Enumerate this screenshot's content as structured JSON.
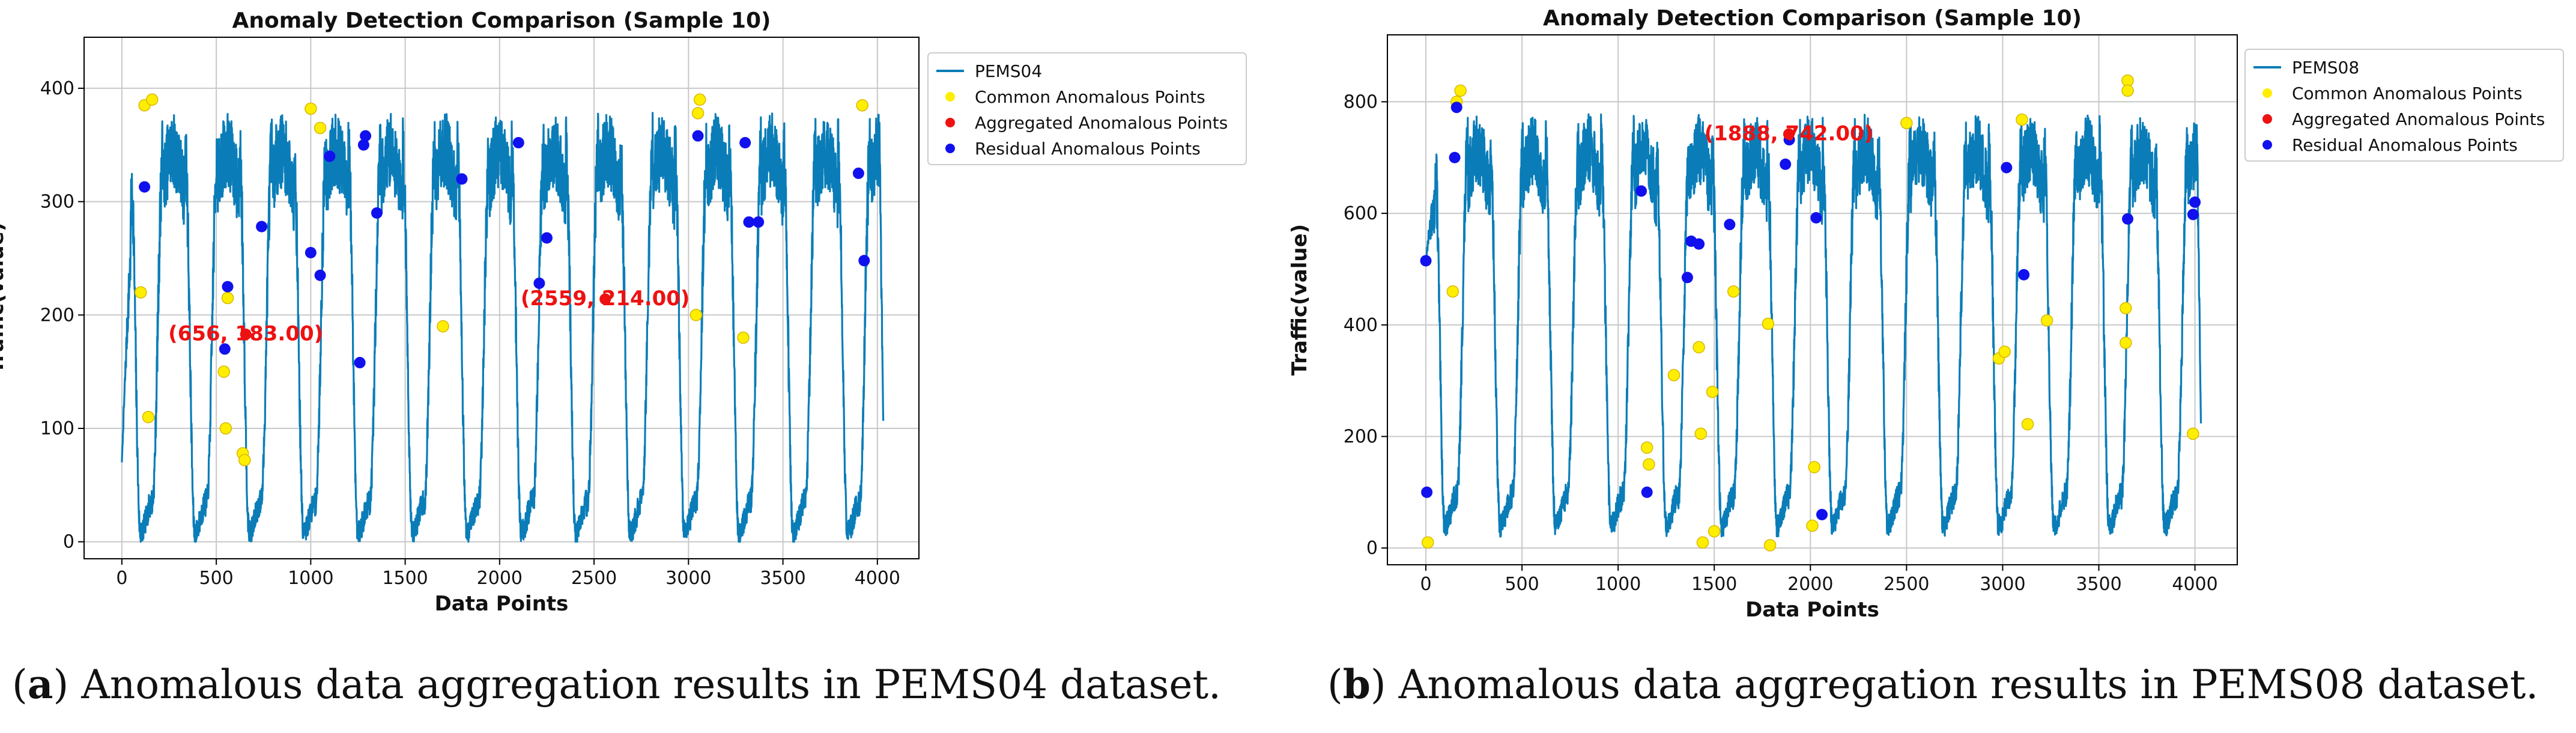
{
  "captions": [
    {
      "label": "a",
      "text": "Anomalous data aggregation results in PEMS04 dataset."
    },
    {
      "label": "b",
      "text": "Anomalous data aggregation results in PEMS08 dataset."
    }
  ],
  "chart_data": [
    {
      "type": "line",
      "title": "Anomaly Detection Comparison (Sample 10)",
      "xlabel": "Data Points",
      "ylabel": "Traffic(value)",
      "xlim": [
        -200,
        4220
      ],
      "ylim": [
        -15,
        445
      ],
      "xticks": [
        0,
        500,
        1000,
        1500,
        2000,
        2500,
        3000,
        3500,
        4000
      ],
      "yticks": [
        0,
        100,
        200,
        300,
        400
      ],
      "grid": true,
      "legend_position": "right",
      "legend": [
        "PEMS04",
        "Common Anomalous Points",
        "Aggregated Anomalous Points",
        "Residual Anomalous Points"
      ],
      "series_params": {
        "name": "PEMS04",
        "n": 4032,
        "start": 70,
        "low": 8,
        "high": 345,
        "end": 95,
        "period": 288,
        "offset": 190,
        "noise": 24,
        "seed": 7
      },
      "annotations": [
        {
          "text": "(656, 183.00)",
          "x": 656,
          "y": 183
        },
        {
          "text": "(2559, 214.00)",
          "x": 2559,
          "y": 214
        }
      ],
      "common_points": [
        [
          100,
          220
        ],
        [
          120,
          385
        ],
        [
          140,
          110
        ],
        [
          160,
          390
        ],
        [
          540,
          150
        ],
        [
          550,
          100
        ],
        [
          560,
          215
        ],
        [
          640,
          78
        ],
        [
          650,
          72
        ],
        [
          1000,
          382
        ],
        [
          1050,
          365
        ],
        [
          1700,
          190
        ],
        [
          3040,
          200
        ],
        [
          3050,
          378
        ],
        [
          3060,
          390
        ],
        [
          3290,
          180
        ],
        [
          3920,
          385
        ]
      ],
      "aggregated_points": [
        [
          656,
          183
        ],
        [
          2559,
          214
        ]
      ],
      "residual_points": [
        [
          120,
          313
        ],
        [
          545,
          170
        ],
        [
          560,
          225
        ],
        [
          740,
          278
        ],
        [
          1000,
          255
        ],
        [
          1050,
          235
        ],
        [
          1100,
          340
        ],
        [
          1260,
          158
        ],
        [
          1280,
          350
        ],
        [
          1290,
          358
        ],
        [
          1350,
          290
        ],
        [
          1800,
          320
        ],
        [
          2100,
          352
        ],
        [
          2210,
          228
        ],
        [
          2250,
          268
        ],
        [
          3050,
          358
        ],
        [
          3300,
          352
        ],
        [
          3320,
          282
        ],
        [
          3370,
          282
        ],
        [
          3900,
          325
        ],
        [
          3930,
          248
        ]
      ]
    },
    {
      "type": "line",
      "title": "Anomaly Detection Comparison (Sample 10)",
      "xlabel": "Data Points",
      "ylabel": "Traffic(value)",
      "xlim": [
        -200,
        4220
      ],
      "ylim": [
        -30,
        920
      ],
      "xticks": [
        0,
        500,
        1000,
        1500,
        2000,
        2500,
        3000,
        3500,
        4000
      ],
      "yticks": [
        0,
        200,
        400,
        600,
        800
      ],
      "grid": true,
      "legend_position": "right",
      "legend": [
        "PEMS08",
        "Common Anomalous Points",
        "Aggregated Anomalous Points",
        "Residual Anomalous Points"
      ],
      "series_params": {
        "name": "PEMS08",
        "n": 4032,
        "start": 515,
        "low": 40,
        "high": 715,
        "end": 200,
        "period": 288,
        "offset": 190,
        "noise": 45,
        "seed": 13
      },
      "annotations": [
        {
          "text": "(1888, 742.00)",
          "x": 1888,
          "y": 742
        }
      ],
      "common_points": [
        [
          10,
          10
        ],
        [
          140,
          460
        ],
        [
          160,
          800
        ],
        [
          180,
          820
        ],
        [
          1150,
          180
        ],
        [
          1160,
          150
        ],
        [
          1290,
          310
        ],
        [
          1420,
          360
        ],
        [
          1430,
          205
        ],
        [
          1440,
          10
        ],
        [
          1490,
          280
        ],
        [
          1500,
          30
        ],
        [
          1600,
          460
        ],
        [
          1780,
          402
        ],
        [
          1790,
          5
        ],
        [
          2010,
          40
        ],
        [
          2020,
          145
        ],
        [
          2500,
          762
        ],
        [
          2980,
          340
        ],
        [
          3010,
          352
        ],
        [
          3100,
          768
        ],
        [
          3130,
          222
        ],
        [
          3230,
          408
        ],
        [
          3640,
          430
        ],
        [
          3640,
          368
        ],
        [
          3650,
          838
        ],
        [
          3650,
          820
        ],
        [
          3990,
          205
        ]
      ],
      "aggregated_points": [
        [
          1888,
          742
        ]
      ],
      "residual_points": [
        [
          0,
          515
        ],
        [
          5,
          100
        ],
        [
          150,
          700
        ],
        [
          160,
          790
        ],
        [
          1120,
          640
        ],
        [
          1150,
          100
        ],
        [
          1360,
          485
        ],
        [
          1380,
          550
        ],
        [
          1420,
          545
        ],
        [
          1580,
          580
        ],
        [
          1870,
          688
        ],
        [
          1890,
          732
        ],
        [
          2030,
          592
        ],
        [
          2060,
          60
        ],
        [
          3020,
          682
        ],
        [
          3110,
          490
        ],
        [
          3650,
          590
        ],
        [
          3990,
          598
        ],
        [
          4000,
          620
        ]
      ]
    }
  ]
}
